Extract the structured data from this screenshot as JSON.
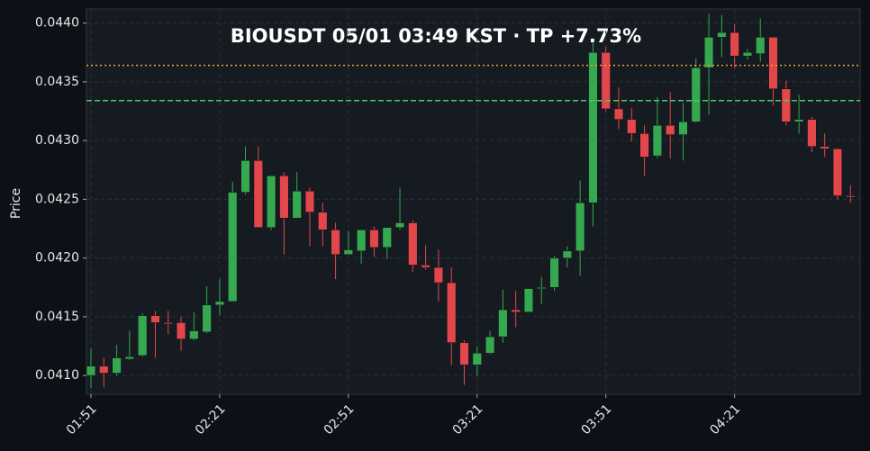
{
  "chart_data": {
    "type": "candlestick",
    "title": "BIOUSDT  05/01 03:49 KST  ·  TP +7.73%",
    "y_label": "Price",
    "categories": [
      "01:51",
      null,
      null,
      null,
      null,
      null,
      null,
      null,
      null,
      null,
      "02:21",
      null,
      null,
      null,
      null,
      null,
      null,
      null,
      null,
      null,
      "02:51",
      null,
      null,
      null,
      null,
      null,
      null,
      null,
      null,
      null,
      "03:21",
      null,
      null,
      null,
      null,
      null,
      null,
      null,
      null,
      null,
      "03:51",
      null,
      null,
      null,
      null,
      null,
      null,
      null,
      null,
      null,
      "04:21",
      null,
      null,
      null,
      null,
      null,
      null,
      null,
      null,
      null
    ],
    "open": [
      0.041,
      0.04108,
      0.04102,
      0.04114,
      0.04117,
      0.04151,
      0.04145,
      0.04145,
      0.04131,
      0.04137,
      0.0416,
      0.04163,
      0.04256,
      0.04283,
      0.04226,
      0.0427,
      0.04234,
      0.04257,
      0.04239,
      0.04224,
      0.04203,
      0.04206,
      0.04224,
      0.04209,
      0.04226,
      0.0423,
      0.04194,
      0.04192,
      0.04179,
      0.04128,
      0.04109,
      0.04119,
      0.04133,
      0.04156,
      0.04154,
      0.04174,
      0.04175,
      0.042,
      0.04206,
      0.04247,
      0.04375,
      0.04327,
      0.04318,
      0.04306,
      0.04287,
      0.04313,
      0.04305,
      0.04316,
      0.04362,
      0.04388,
      0.04392,
      0.04372,
      0.04374,
      0.04388,
      0.04344,
      0.04316,
      0.04318,
      0.04295,
      0.04293,
      0.04253
    ],
    "high": [
      0.04123,
      0.04115,
      0.04126,
      0.04138,
      0.04153,
      0.04155,
      0.04155,
      0.0415,
      0.04154,
      0.04176,
      0.04182,
      0.04265,
      0.04295,
      0.04295,
      0.0427,
      0.04273,
      0.04273,
      0.0426,
      0.04247,
      0.0423,
      0.04223,
      0.04224,
      0.04227,
      0.04226,
      0.0426,
      0.04232,
      0.04211,
      0.04207,
      0.04192,
      0.0413,
      0.04125,
      0.04138,
      0.04173,
      0.04172,
      0.04174,
      0.04184,
      0.04202,
      0.0421,
      0.04266,
      0.04384,
      0.0438,
      0.04345,
      0.04328,
      0.04313,
      0.04337,
      0.04341,
      0.04332,
      0.0437,
      0.04408,
      0.04407,
      0.04399,
      0.04378,
      0.04404,
      0.04388,
      0.04351,
      0.04339,
      0.0432,
      0.04306,
      0.04293,
      0.04262
    ],
    "low": [
      0.04089,
      0.0409,
      0.041,
      0.04113,
      0.04116,
      0.04115,
      0.04135,
      0.04121,
      0.0413,
      0.04136,
      0.04151,
      0.04163,
      0.04254,
      0.04226,
      0.04224,
      0.04203,
      0.04234,
      0.0421,
      0.0421,
      0.04182,
      0.04203,
      0.04195,
      0.04201,
      0.04199,
      0.04224,
      0.04188,
      0.0419,
      0.04163,
      0.04109,
      0.04092,
      0.041,
      0.04118,
      0.04128,
      0.04141,
      0.04154,
      0.04161,
      0.04172,
      0.04192,
      0.04185,
      0.04227,
      0.04325,
      0.0431,
      0.04299,
      0.0427,
      0.04285,
      0.04285,
      0.04283,
      0.04315,
      0.04322,
      0.04371,
      0.04362,
      0.04369,
      0.04367,
      0.0433,
      0.04313,
      0.04306,
      0.0429,
      0.04286,
      0.0425,
      0.04247
    ],
    "close": [
      0.04108,
      0.04102,
      0.04115,
      0.04116,
      0.04151,
      0.04145,
      0.04144,
      0.04131,
      0.04138,
      0.0416,
      0.04163,
      0.04256,
      0.04283,
      0.04226,
      0.0427,
      0.04234,
      0.04257,
      0.04239,
      0.04224,
      0.04203,
      0.04207,
      0.04224,
      0.04209,
      0.04226,
      0.0423,
      0.04194,
      0.04192,
      0.04179,
      0.04128,
      0.04109,
      0.04119,
      0.04133,
      0.04156,
      0.04154,
      0.04174,
      0.04175,
      0.042,
      0.04206,
      0.04247,
      0.04375,
      0.04327,
      0.04318,
      0.04306,
      0.04286,
      0.04313,
      0.04305,
      0.04316,
      0.04362,
      0.04388,
      0.04392,
      0.04372,
      0.04375,
      0.04388,
      0.04344,
      0.04316,
      0.04318,
      0.04295,
      0.04293,
      0.04253,
      0.04252
    ],
    "up_color": "#36a84f",
    "down_color": "#e2474b",
    "hlines": [
      {
        "value": 0.04364,
        "color": "#f0a33a",
        "style": "dotted"
      },
      {
        "value": 0.04334,
        "color": "#4cc764",
        "style": "dashed"
      }
    ],
    "ylim": [
      0.04084,
      0.04412
    ],
    "yticks": [
      {
        "value": 0.041,
        "label": "0.0410"
      },
      {
        "value": 0.0415,
        "label": "0.0415"
      },
      {
        "value": 0.042,
        "label": "0.0420"
      },
      {
        "value": 0.0425,
        "label": "0.0425"
      },
      {
        "value": 0.043,
        "label": "0.0430"
      },
      {
        "value": 0.0435,
        "label": "0.0435"
      },
      {
        "value": 0.044,
        "label": "0.0440"
      }
    ],
    "grid": true
  }
}
